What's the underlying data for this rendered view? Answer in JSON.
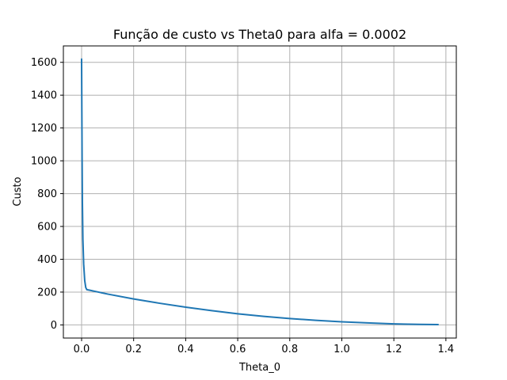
{
  "chart_data": {
    "type": "line",
    "title": "Função de custo vs Theta0 para alfa = 0.0002",
    "xlabel": "Theta_0",
    "ylabel": "Custo",
    "xlim": [
      -0.07,
      1.44
    ],
    "ylim": [
      -80,
      1700
    ],
    "xticks": [
      0.0,
      0.2,
      0.4,
      0.6,
      0.8,
      1.0,
      1.2,
      1.4
    ],
    "xtick_labels": [
      "0.0",
      "0.2",
      "0.4",
      "0.6",
      "0.8",
      "1.0",
      "1.2",
      "1.4"
    ],
    "yticks": [
      0,
      200,
      400,
      600,
      800,
      1000,
      1200,
      1400,
      1600
    ],
    "ytick_labels": [
      "0",
      "200",
      "400",
      "600",
      "800",
      "1000",
      "1200",
      "1400",
      "1600"
    ],
    "grid": true,
    "color": "#1f77b4",
    "series": [
      {
        "x": [
          0.0,
          0.001,
          0.002,
          0.003,
          0.005,
          0.008,
          0.012,
          0.016,
          0.02,
          0.03,
          0.05,
          0.1,
          0.2,
          0.3,
          0.4,
          0.5,
          0.6,
          0.7,
          0.8,
          0.9,
          1.0,
          1.1,
          1.2,
          1.3,
          1.37
        ],
        "y": [
          1620,
          1300,
          1000,
          750,
          520,
          370,
          270,
          228,
          215,
          212,
          205,
          188,
          158,
          132,
          108,
          87,
          68,
          52,
          39,
          28,
          19,
          12,
          6,
          3,
          2
        ]
      }
    ]
  }
}
